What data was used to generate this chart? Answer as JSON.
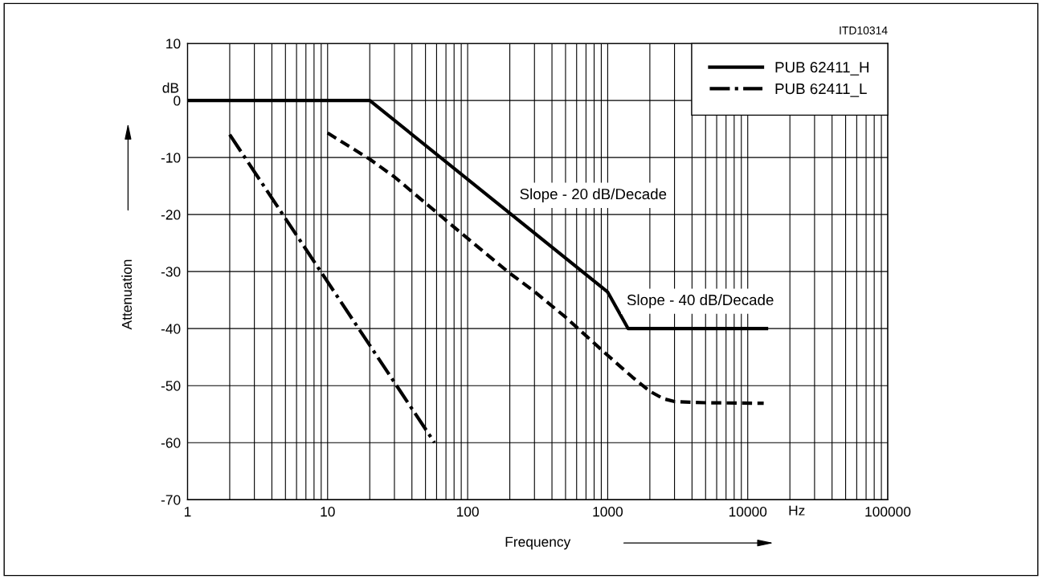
{
  "chart_data": {
    "type": "line",
    "xlabel": "Frequency",
    "ylabel": "Attenuation",
    "log": "x",
    "xlim": [
      1,
      100000
    ],
    "xticks": [
      1,
      10,
      100,
      1000,
      10000,
      100000
    ],
    "ylim": [
      -70,
      10
    ],
    "yticks": [
      10,
      0,
      -10,
      -20,
      -30,
      -40,
      -50,
      -60,
      -70
    ],
    "grid": true,
    "legend": "top right",
    "marker": "none",
    "series": [
      {
        "name": "PUB 62411_H",
        "color": "#000000",
        "line_style": "solid",
        "x": [
          1,
          20,
          1000,
          1400,
          14000
        ],
        "values": [
          0,
          0,
          -33.6,
          -40,
          -40
        ]
      },
      {
        "name": "PUB 62411_L",
        "color": "#000000",
        "line_style": "dashdot",
        "x": [
          2,
          58
        ],
        "values": [
          -6,
          -60
        ]
      },
      {
        "color": "#000000",
        "line_style": "dashed",
        "x": [
          10,
          20,
          30,
          50,
          100,
          200,
          300,
          500,
          1000,
          1500,
          2000,
          2500,
          3000,
          5000,
          13000
        ],
        "values": [
          -5.7,
          -10.3,
          -13.4,
          -18,
          -24.2,
          -30.3,
          -33.5,
          -38,
          -44.7,
          -48.5,
          -51,
          -52.3,
          -52.8,
          -53,
          -53.1
        ]
      }
    ],
    "annotations": [
      "ITD10314",
      "dB",
      "Hz",
      "Slope - 20 dB/Decade",
      "Slope - 40 dB/Decade"
    ]
  }
}
